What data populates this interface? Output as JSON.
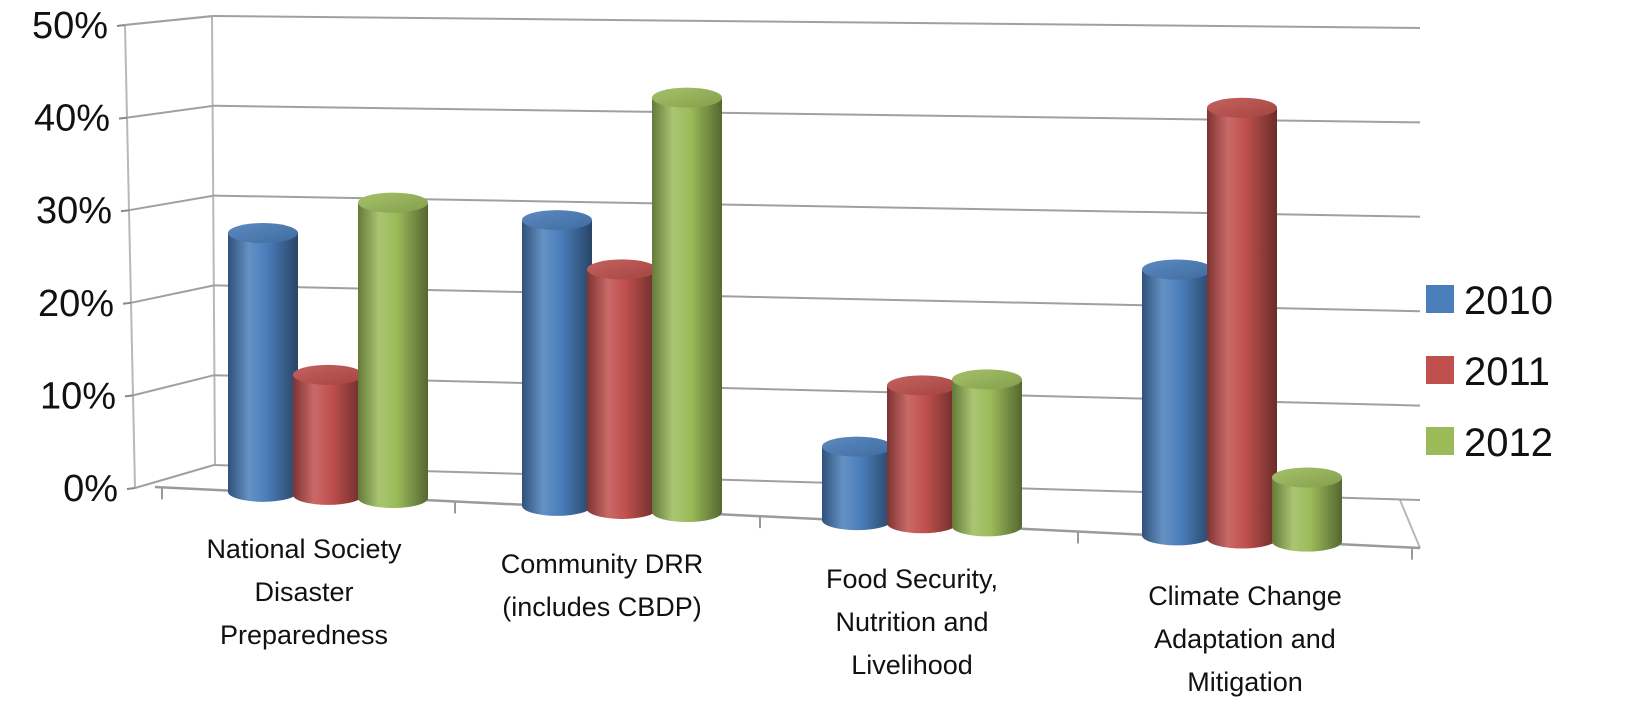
{
  "chart_data": {
    "type": "bar",
    "categories": [
      [
        "National Society",
        "Disaster",
        "Preparedness"
      ],
      [
        "Community DRR",
        "(includes CBDP)"
      ],
      [
        "Food Security,",
        "Nutrition and",
        "Livelihood"
      ],
      [
        "Climate Change",
        "Adaptation and",
        "Mitigation"
      ]
    ],
    "series": [
      {
        "name": "2010",
        "values": [
          28,
          31,
          8,
          29
        ],
        "color": "#4a7ebb"
      },
      {
        "name": "2011",
        "values": [
          13,
          26,
          15,
          47
        ],
        "color": "#c0504d"
      },
      {
        "name": "2012",
        "values": [
          32,
          45,
          16,
          7
        ],
        "color": "#9bbb59"
      }
    ],
    "yticks": [
      "0%",
      "10%",
      "20%",
      "30%",
      "40%",
      "50%"
    ],
    "ylim": [
      0,
      50
    ],
    "grid": true,
    "legend_position": "right"
  }
}
